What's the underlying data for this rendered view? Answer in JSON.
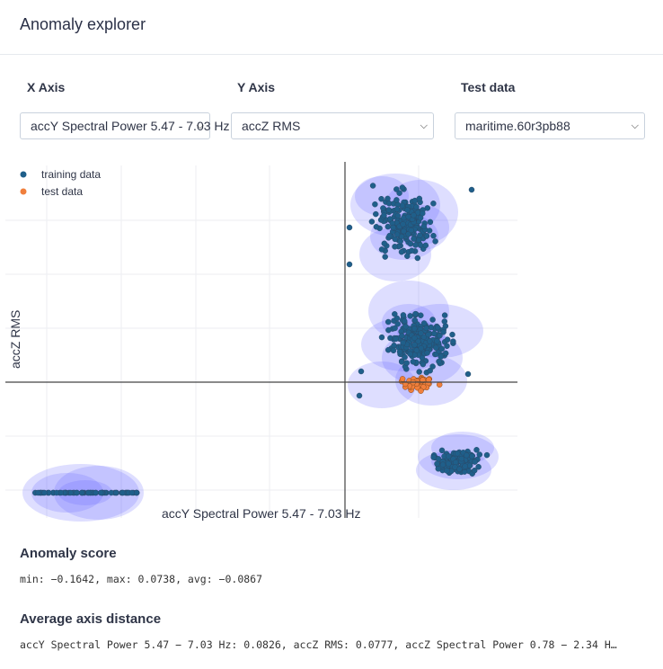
{
  "header": {
    "title": "Anomaly explorer"
  },
  "controls": {
    "x_axis": {
      "label": "X Axis",
      "value": "accY Spectral Power 5.47 - 7.03 Hz"
    },
    "y_axis": {
      "label": "Y Axis",
      "value": "accZ RMS"
    },
    "test_data": {
      "label": "Test data",
      "value": "maritime.60r3pb88"
    }
  },
  "chart_data": {
    "type": "scatter",
    "xlabel": "accY Spectral Power 5.47 - 7.03 Hz",
    "ylabel": "accZ RMS",
    "legend_position": "top-left",
    "grid": true,
    "series": [
      {
        "name": "training data",
        "color": "#1f5f8a"
      },
      {
        "name": "test data",
        "color": "#f07f3c"
      }
    ],
    "cluster_color": "#6b6bff"
  },
  "anomaly_score": {
    "title": "Anomaly score",
    "text": "min: −0.1642, max: 0.0738, avg: −0.0867"
  },
  "axis_distance": {
    "title": "Average axis distance",
    "text": "accY Spectral Power 5.47 − 7.03 Hz: 0.0826, accZ RMS: 0.0777, accZ Spectral Power 0.78 − 2.34 H…"
  }
}
